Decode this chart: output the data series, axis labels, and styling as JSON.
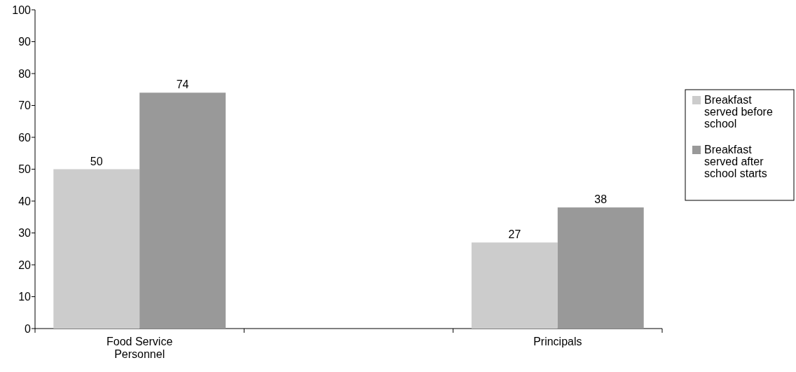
{
  "chart_data": {
    "type": "bar",
    "categories": [
      "Food Service Personnel",
      null,
      "Principals"
    ],
    "series": [
      {
        "name": "Breakfast served before school",
        "color": "#cccccc",
        "values": [
          50,
          null,
          27
        ]
      },
      {
        "name": "Breakfast served after school starts",
        "color": "#999999",
        "values": [
          74,
          null,
          38
        ]
      }
    ],
    "ylim": [
      0,
      100
    ],
    "yticks": [
      0,
      10,
      20,
      30,
      40,
      50,
      60,
      70,
      80,
      90,
      100
    ],
    "grid": false,
    "legend": "right",
    "data_labels": true
  }
}
